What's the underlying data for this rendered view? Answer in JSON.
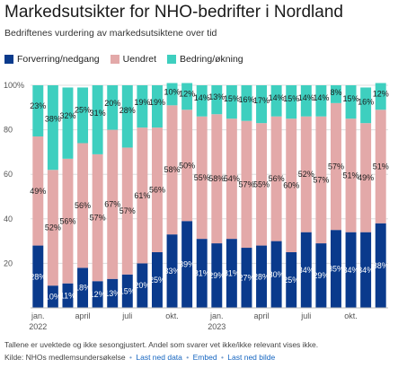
{
  "chart_data": {
    "type": "bar",
    "stacked": true,
    "title": "Markedsutsikter for NHO-bedrifter i Nordland",
    "subtitle": "Bedriftenes vurdering av markedsutsiktene over tid",
    "ylim": [
      0,
      100
    ],
    "yticks": [
      "100%",
      "80",
      "60",
      "40",
      "20"
    ],
    "xtick_labels": [
      {
        "index": 0,
        "label": "jan.",
        "sub": "2022"
      },
      {
        "index": 3,
        "label": "april",
        "sub": ""
      },
      {
        "index": 6,
        "label": "juli",
        "sub": ""
      },
      {
        "index": 9,
        "label": "okt.",
        "sub": ""
      },
      {
        "index": 12,
        "label": "jan.",
        "sub": "2023"
      },
      {
        "index": 15,
        "label": "april",
        "sub": ""
      },
      {
        "index": 18,
        "label": "juli",
        "sub": ""
      },
      {
        "index": 21,
        "label": "okt.",
        "sub": ""
      }
    ],
    "series": [
      {
        "name": "Forverring/nedgang",
        "color": "#0a3a8c",
        "values": [
          28,
          10,
          11,
          18,
          12,
          13,
          15,
          20,
          25,
          33,
          39,
          31,
          29,
          31,
          27,
          28,
          30,
          25,
          34,
          29,
          35,
          34,
          34,
          38
        ],
        "labels": [
          "28%",
          "10%",
          "11%",
          "18%",
          "12%",
          "13%",
          "15%",
          "20%",
          "25%",
          "33%",
          "39%",
          "31%",
          "29%",
          "31%",
          "27%",
          "28%",
          "30%",
          "25%",
          "34%",
          "29%",
          "35%",
          "34%",
          "34%",
          "38%"
        ]
      },
      {
        "name": "Uendret",
        "color": "#e3a9a9",
        "values": [
          49,
          52,
          56,
          56,
          57,
          67,
          57,
          61,
          56,
          58,
          50,
          55,
          58,
          54,
          57,
          55,
          56,
          60,
          52,
          57,
          57,
          51,
          49,
          51
        ],
        "labels": [
          "49%",
          "52%",
          "56%",
          "56%",
          "57%",
          "67%",
          "57%",
          "61%",
          "56%",
          "58%",
          "50%",
          "55%",
          "58%",
          "54%",
          "57%",
          "55%",
          "56%",
          "60%",
          "52%",
          "57%",
          "57%",
          "51%",
          "49%",
          "51%"
        ]
      },
      {
        "name": "Bedring/økning",
        "color": "#3ecfbf",
        "values": [
          23,
          38,
          32,
          25,
          31,
          20,
          28,
          19,
          19,
          10,
          12,
          14,
          13,
          15,
          16,
          17,
          14,
          15,
          14,
          14,
          8,
          15,
          16,
          12
        ],
        "labels": [
          "23%",
          "38%",
          "32%",
          "25%",
          "31%",
          "20%",
          "28%",
          "19%",
          "19%",
          "10%",
          "12%",
          "14%",
          "13%",
          "15%",
          "16%",
          "17%",
          "14%",
          "15%",
          "14%",
          "14%",
          "8%",
          "15%",
          "16%",
          "12%"
        ]
      }
    ]
  },
  "footnote": "Tallene er uvektede og ikke sesongjustert. Andel som svarer vet ikke/ikke relevant vises ikke.",
  "source": {
    "prefix": "Kilde: NHOs medlemsundersøkelse",
    "links": [
      "Last ned data",
      "Embed",
      "Last ned bilde"
    ]
  }
}
